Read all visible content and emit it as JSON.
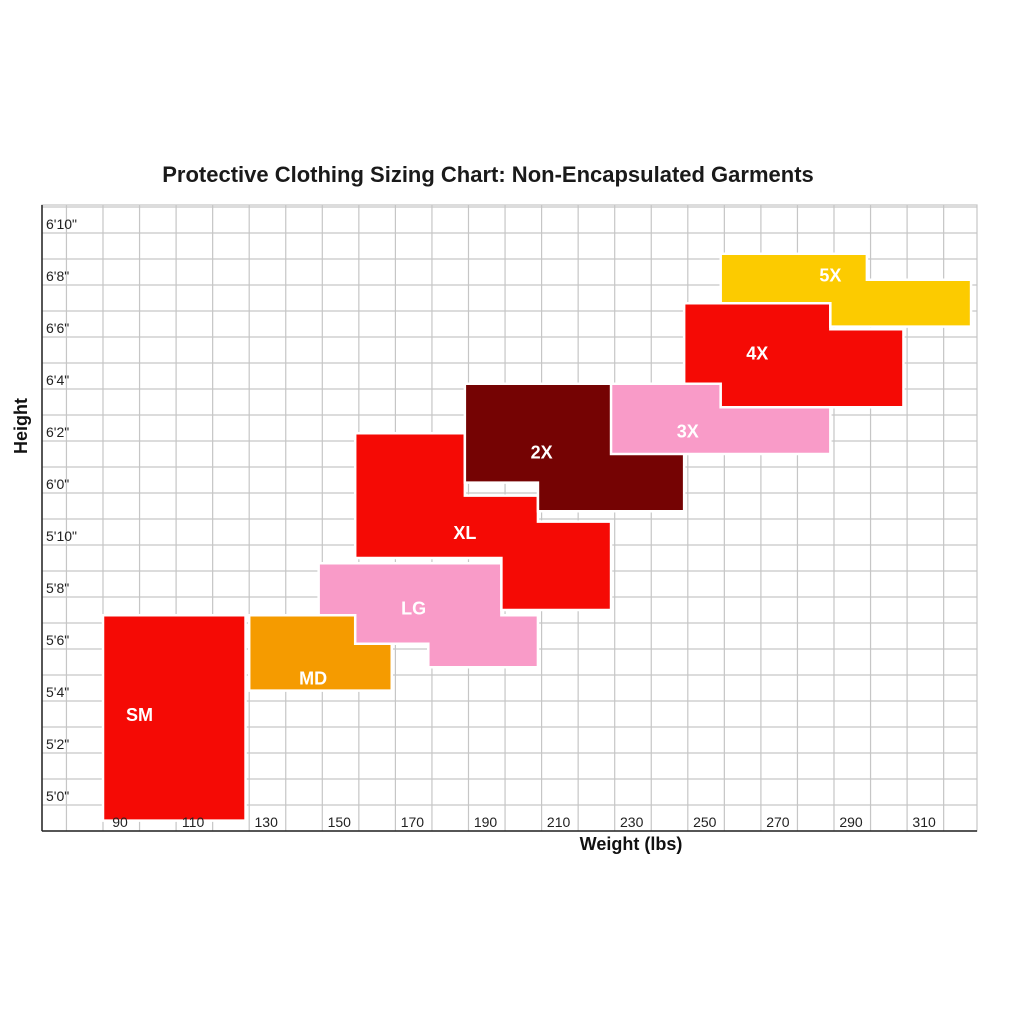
{
  "chart_data": {
    "type": "heatmap",
    "title": "Protective Clothing Sizing Chart: Non-Encapsulated Garments",
    "xlabel": "Weight (lbs)",
    "ylabel": "Height",
    "x_unit": "lbs",
    "y_unit": "inches",
    "xlim": [
      73.5,
      327.5
    ],
    "ylim": [
      59.2,
      83.0
    ],
    "grid": true,
    "x_ticks": [
      {
        "value": 90,
        "label": "90"
      },
      {
        "value": 110,
        "label": "110"
      },
      {
        "value": 130,
        "label": "130"
      },
      {
        "value": 150,
        "label": "150"
      },
      {
        "value": 170,
        "label": "170"
      },
      {
        "value": 190,
        "label": "190"
      },
      {
        "value": 210,
        "label": "210"
      },
      {
        "value": 230,
        "label": "230"
      },
      {
        "value": 250,
        "label": "250"
      },
      {
        "value": 270,
        "label": "270"
      },
      {
        "value": 290,
        "label": "290"
      },
      {
        "value": 310,
        "label": "310"
      }
    ],
    "y_ticks": [
      {
        "value": 60,
        "label": "5'0\""
      },
      {
        "value": 62,
        "label": "5'2\""
      },
      {
        "value": 64,
        "label": "5'4\""
      },
      {
        "value": 66,
        "label": "5'6\""
      },
      {
        "value": 68,
        "label": "5'8\""
      },
      {
        "value": 70,
        "label": "5'10\""
      },
      {
        "value": 72,
        "label": "6'0\""
      },
      {
        "value": 74,
        "label": "6'2\""
      },
      {
        "value": 76,
        "label": "6'4\""
      },
      {
        "value": 78,
        "label": "6'6\""
      },
      {
        "value": 80,
        "label": "6'8\""
      },
      {
        "value": 82,
        "label": "6'10\""
      }
    ],
    "regions": [
      {
        "label": "SM",
        "color": "#f50a05",
        "rects": [
          [
            90,
            129,
            59.4,
            67.3
          ]
        ]
      },
      {
        "label": "MD",
        "color": "#f59b00",
        "rects": [
          [
            130,
            169,
            64.4,
            67.3
          ],
          [
            130,
            149,
            67.3,
            67.3
          ]
        ],
        "polygon": [
          [
            130,
            64.4
          ],
          [
            169,
            64.4
          ],
          [
            169,
            67.3
          ],
          [
            149,
            67.3
          ],
          [
            149,
            67.3
          ],
          [
            130,
            67.3
          ]
        ]
      },
      {
        "label": "LG",
        "color": "#f99bc8",
        "polygon": [
          [
            149,
            69.3
          ],
          [
            199,
            69.3
          ],
          [
            199,
            67.3
          ],
          [
            209,
            67.3
          ],
          [
            209,
            65.3
          ],
          [
            179,
            65.3
          ],
          [
            179,
            66.2
          ],
          [
            159,
            66.2
          ],
          [
            159,
            67.3
          ],
          [
            149,
            67.3
          ]
        ]
      },
      {
        "label": "XL",
        "color": "#f50a05",
        "polygon": [
          [
            159,
            74.3
          ],
          [
            189,
            74.3
          ],
          [
            189,
            71.9
          ],
          [
            209,
            71.9
          ],
          [
            209,
            70.9
          ],
          [
            229,
            70.9
          ],
          [
            229,
            67.5
          ],
          [
            199,
            67.5
          ],
          [
            199,
            69.5
          ],
          [
            159,
            69.5
          ]
        ]
      },
      {
        "label": "2X",
        "color": "#750303",
        "polygon": [
          [
            189,
            76.2
          ],
          [
            239,
            76.2
          ],
          [
            239,
            74.4
          ],
          [
            249,
            74.4
          ],
          [
            249,
            71.3
          ],
          [
            209,
            71.3
          ],
          [
            209,
            72.4
          ],
          [
            189,
            72.4
          ]
        ]
      },
      {
        "label": "3X",
        "color": "#f99bc8",
        "polygon": [
          [
            229,
            76.2
          ],
          [
            259,
            76.2
          ],
          [
            259,
            75.3
          ],
          [
            289,
            75.3
          ],
          [
            289,
            73.5
          ],
          [
            229,
            73.5
          ]
        ]
      },
      {
        "label": "4X",
        "color": "#f50a05",
        "polygon": [
          [
            249,
            79.3
          ],
          [
            269,
            79.3
          ],
          [
            269,
            79.3
          ],
          [
            289,
            79.3
          ],
          [
            289,
            78.3
          ],
          [
            309,
            78.3
          ],
          [
            309,
            75.3
          ],
          [
            259,
            75.3
          ],
          [
            259,
            76.2
          ],
          [
            249,
            76.2
          ]
        ]
      },
      {
        "label": "5X",
        "color": "#fccb00",
        "polygon": [
          [
            259,
            81.2
          ],
          [
            299,
            81.2
          ],
          [
            299,
            80.2
          ],
          [
            327.5,
            80.2
          ],
          [
            327.5,
            78.4
          ],
          [
            289,
            78.4
          ],
          [
            289,
            79.3
          ],
          [
            259,
            79.3
          ]
        ]
      }
    ]
  }
}
